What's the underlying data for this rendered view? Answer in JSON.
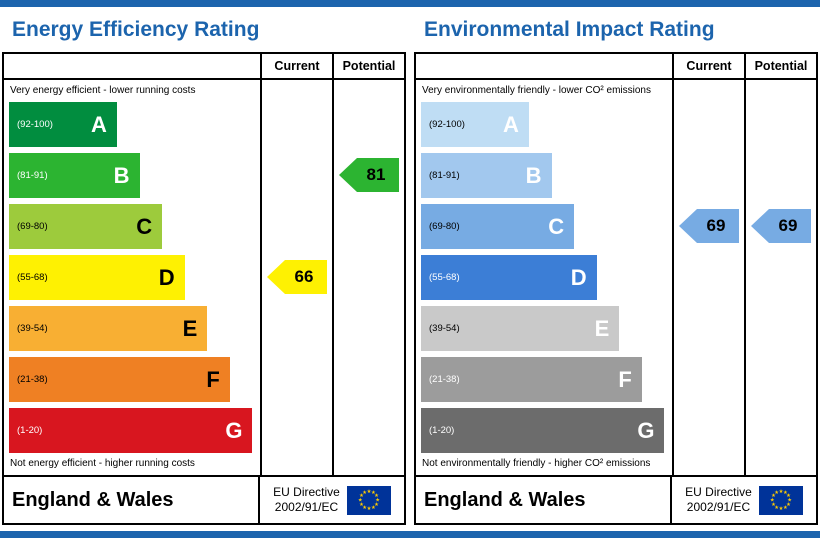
{
  "page": {
    "accent_blue": "#1c64ad",
    "border_color": "#000000",
    "background": "#ffffff"
  },
  "energy": {
    "title": "Energy Efficiency Rating",
    "header": {
      "current": "Current",
      "potential": "Potential"
    },
    "top_note": "Very energy efficient - lower running costs",
    "bottom_note": "Not energy efficient - higher running costs",
    "bands": [
      {
        "range": "(92-100)",
        "letter": "A",
        "color": "#018d3f",
        "range_color": "#ffffff",
        "letter_color": "#ffffff"
      },
      {
        "range": "(81-91)",
        "letter": "B",
        "color": "#2cb431",
        "range_color": "#ffffff",
        "letter_color": "#ffffff"
      },
      {
        "range": "(69-80)",
        "letter": "C",
        "color": "#9dcb3c",
        "range_color": "#000000",
        "letter_color": "#000000"
      },
      {
        "range": "(55-68)",
        "letter": "D",
        "color": "#fef102",
        "range_color": "#000000",
        "letter_color": "#000000"
      },
      {
        "range": "(39-54)",
        "letter": "E",
        "color": "#f8af33",
        "range_color": "#000000",
        "letter_color": "#000000"
      },
      {
        "range": "(21-38)",
        "letter": "F",
        "color": "#ef8023",
        "range_color": "#000000",
        "letter_color": "#000000"
      },
      {
        "range": "(1-20)",
        "letter": "G",
        "color": "#d8161f",
        "range_color": "#ffffff",
        "letter_color": "#ffffff"
      }
    ],
    "current": {
      "value": "66",
      "band_index": 3,
      "color": "#fef102",
      "text_color": "#000000"
    },
    "potential": {
      "value": "81",
      "band_index": 1,
      "color": "#2cb431",
      "text_color": "#000000"
    },
    "footer": {
      "region": "England & Wales",
      "directive_line1": "EU Directive",
      "directive_line2": "2002/91/EC"
    }
  },
  "environment": {
    "title": "Environmental Impact Rating",
    "header": {
      "current": "Current",
      "potential": "Potential"
    },
    "top_note": "Very environmentally friendly - lower CO² emissions",
    "bottom_note": "Not environmentally friendly - higher CO² emissions",
    "bands": [
      {
        "range": "(92-100)",
        "letter": "A",
        "color": "#bfddf4",
        "range_color": "#000000",
        "letter_color": "#ffffff"
      },
      {
        "range": "(81-91)",
        "letter": "B",
        "color": "#a2c8ee",
        "range_color": "#000000",
        "letter_color": "#ffffff"
      },
      {
        "range": "(69-80)",
        "letter": "C",
        "color": "#77abe3",
        "range_color": "#000000",
        "letter_color": "#ffffff"
      },
      {
        "range": "(55-68)",
        "letter": "D",
        "color": "#3c7ed6",
        "range_color": "#ffffff",
        "letter_color": "#ffffff"
      },
      {
        "range": "(39-54)",
        "letter": "E",
        "color": "#c9c9c9",
        "range_color": "#000000",
        "letter_color": "#ffffff"
      },
      {
        "range": "(21-38)",
        "letter": "F",
        "color": "#9c9c9c",
        "range_color": "#ffffff",
        "letter_color": "#ffffff"
      },
      {
        "range": "(1-20)",
        "letter": "G",
        "color": "#6c6c6c",
        "range_color": "#ffffff",
        "letter_color": "#ffffff"
      }
    ],
    "current": {
      "value": "69",
      "band_index": 2,
      "color": "#77abe3",
      "text_color": "#000000"
    },
    "potential": {
      "value": "69",
      "band_index": 2,
      "color": "#77abe3",
      "text_color": "#000000"
    },
    "footer": {
      "region": "England & Wales",
      "directive_line1": "EU Directive",
      "directive_line2": "2002/91/EC"
    }
  },
  "eu_flag": {
    "background": "#003399",
    "stars": "#ffcc00"
  },
  "chart_data": [
    {
      "type": "bar",
      "title": "Energy Efficiency Rating",
      "categories": [
        "A (92-100)",
        "B (81-91)",
        "C (69-80)",
        "D (55-68)",
        "E (39-54)",
        "F (21-38)",
        "G (1-20)"
      ],
      "columns": [
        "Current",
        "Potential"
      ],
      "current": 66,
      "current_band": "D",
      "potential": 81,
      "potential_band": "B",
      "scale": [
        1,
        100
      ],
      "top_label": "Very energy efficient - lower running costs",
      "bottom_label": "Not energy efficient - higher running costs"
    },
    {
      "type": "bar",
      "title": "Environmental Impact Rating",
      "categories": [
        "A (92-100)",
        "B (81-91)",
        "C (69-80)",
        "D (55-68)",
        "E (39-54)",
        "F (21-38)",
        "G (1-20)"
      ],
      "columns": [
        "Current",
        "Potential"
      ],
      "current": 69,
      "current_band": "C",
      "potential": 69,
      "potential_band": "C",
      "scale": [
        1,
        100
      ],
      "top_label": "Very environmentally friendly - lower CO² emissions",
      "bottom_label": "Not environmentally friendly - higher CO² emissions"
    }
  ]
}
